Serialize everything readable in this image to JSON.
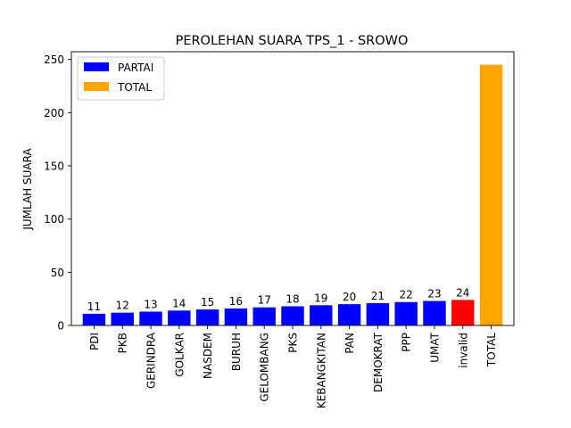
{
  "chart_data": {
    "type": "bar",
    "title": "PEROLEHAN SUARA TPS_1 - SROWO",
    "xlabel": "",
    "ylabel": "JUMLAH SUARA",
    "ylim": [
      0,
      257.25
    ],
    "yticks": [
      0,
      50,
      100,
      150,
      200,
      250
    ],
    "categories": [
      "PDI",
      "PKB",
      "GERINDRA",
      "GOLKAR",
      "NASDEM",
      "BURUH",
      "GELOMBANG",
      "PKS",
      "KEBANGKITAN",
      "PAN",
      "DEMOKRAT",
      "PPP",
      "UMAT",
      "invalid",
      "TOTAL"
    ],
    "values": [
      11,
      12,
      13,
      14,
      15,
      16,
      17,
      18,
      19,
      20,
      21,
      22,
      23,
      24,
      245
    ],
    "bar_colors": [
      "#0000ff",
      "#0000ff",
      "#0000ff",
      "#0000ff",
      "#0000ff",
      "#0000ff",
      "#0000ff",
      "#0000ff",
      "#0000ff",
      "#0000ff",
      "#0000ff",
      "#0000ff",
      "#0000ff",
      "#ff0000",
      "#ffa500"
    ],
    "data_labels": [
      "11",
      "12",
      "13",
      "14",
      "15",
      "16",
      "17",
      "18",
      "19",
      "20",
      "21",
      "22",
      "23",
      "24",
      ""
    ],
    "legend": {
      "placement": "top-left",
      "entries": [
        {
          "label": "PARTAI",
          "color": "#0000ff"
        },
        {
          "label": "TOTAL",
          "color": "#ffa500"
        }
      ]
    },
    "grid": false
  }
}
